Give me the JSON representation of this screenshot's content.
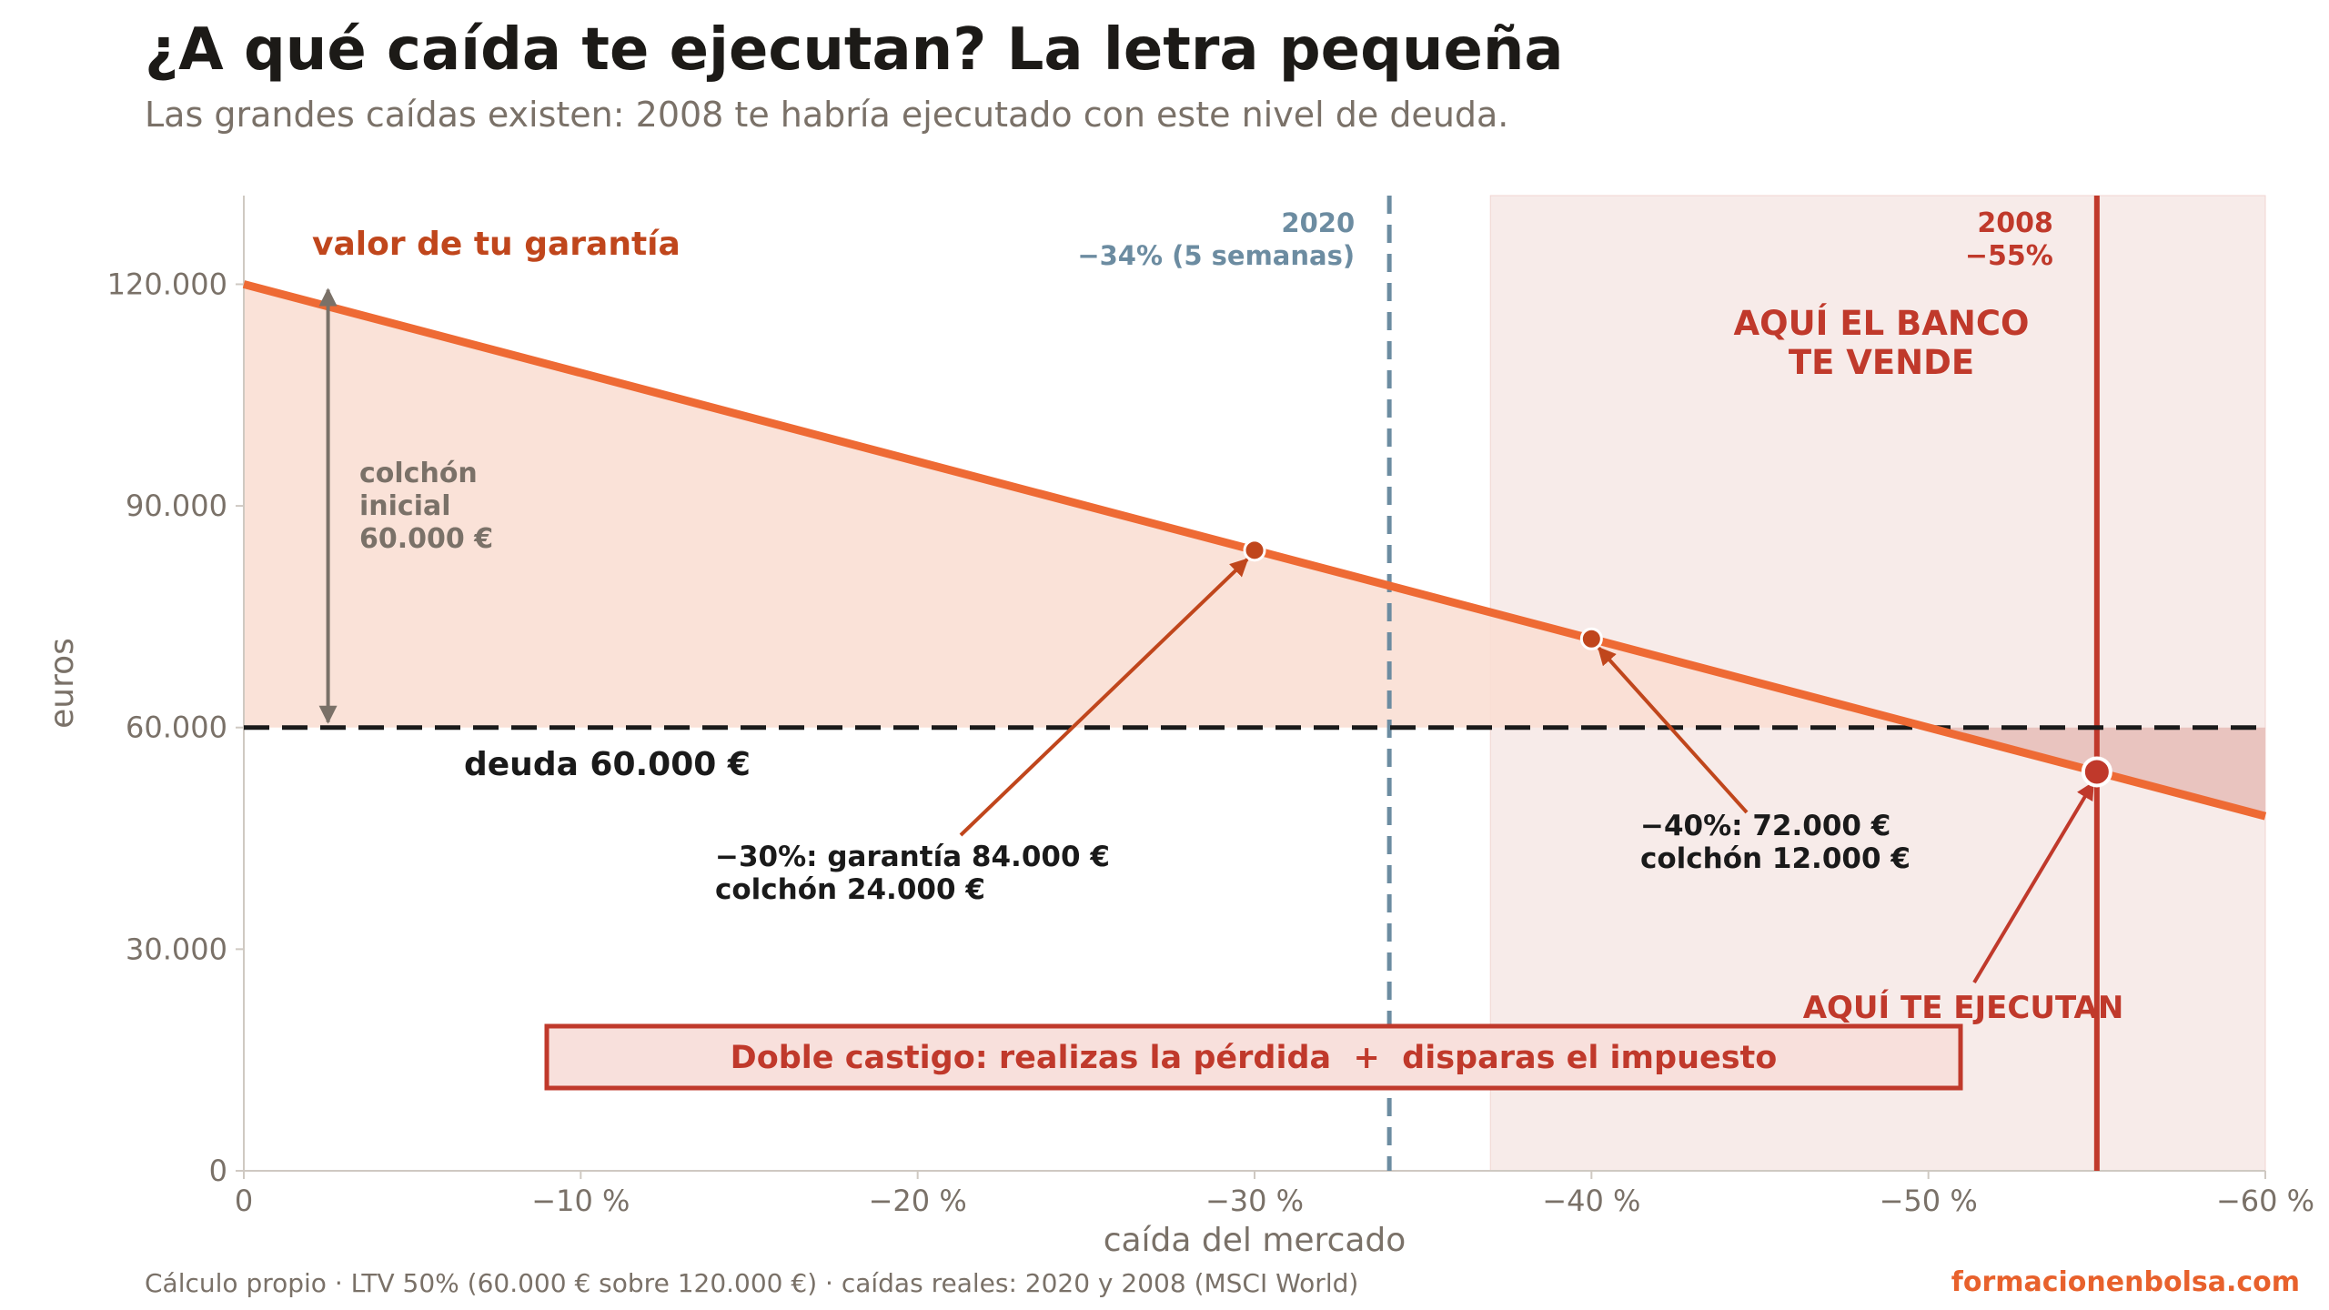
{
  "header": {
    "title": "¿A qué caída te ejecutan? La letra pequeña",
    "subtitle": "Las grandes caídas existen: 2008 te habría ejecutado con este nivel de deuda."
  },
  "footer": {
    "source": "Cálculo propio · LTV 50% (60.000 € sobre 120.000 €) · caídas reales: 2020 y 2008 (MSCI World)",
    "brand": "formacionenbolsa.com"
  },
  "colors": {
    "collateral_line": "#ee6a34",
    "collateral_fill": "#f9dfd4",
    "debt_line": "#1a1a1a",
    "danger": "#c0392b",
    "danger_zone": "#f7ebe9",
    "loss_fill": "#e9c4bf",
    "event_2020": "#6c8ca1",
    "muted": "#7a7168"
  },
  "chart_data": {
    "type": "line",
    "xlabel": "caída del mercado",
    "ylabel": "euros",
    "xlim": [
      0,
      -60
    ],
    "ylim": [
      0,
      132000
    ],
    "x_ticks": [
      0,
      -10,
      -20,
      -30,
      -40,
      -50,
      -60
    ],
    "x_tick_labels": [
      "0",
      "−10 %",
      "−20 %",
      "−30 %",
      "−40 %",
      "−50 %",
      "−60 %"
    ],
    "y_ticks": [
      0,
      30000,
      60000,
      90000,
      120000
    ],
    "y_tick_labels": [
      "0",
      "30.000",
      "60.000",
      "90.000",
      "120.000"
    ],
    "series": [
      {
        "name": "valor de tu garantía",
        "x": [
          0,
          -60
        ],
        "y": [
          120000,
          48000
        ]
      },
      {
        "name": "deuda 60.000 €",
        "x": [
          0,
          -60
        ],
        "y": [
          60000,
          60000
        ]
      }
    ],
    "points": [
      {
        "x": -30,
        "y": 84000,
        "label_lines": [
          "−30%: garantía 84.000 €",
          "colchón 24.000 €"
        ]
      },
      {
        "x": -40,
        "y": 72000,
        "label_lines": [
          "−40%: 72.000 €",
          "colchón 12.000 €"
        ]
      },
      {
        "x": -55,
        "y": 54000,
        "label_lines": [
          "AQUÍ TE EJECUTAN"
        ]
      }
    ],
    "events": [
      {
        "x": -34,
        "label_lines": [
          "2020",
          "−34% (5 semanas)"
        ]
      },
      {
        "x": -55,
        "label_lines": [
          "2008",
          "−55%"
        ]
      }
    ],
    "danger_zone": {
      "from": -37,
      "to": -60,
      "label_lines": [
        "AQUÍ EL BANCO",
        "TE VENDE"
      ]
    },
    "cushion": {
      "x": -2.5,
      "from": 60000,
      "to": 120000,
      "label_lines": [
        "colchón",
        "inicial",
        "60.000 €"
      ]
    },
    "callout": "Doble castigo: realizas la pérdida  +  disparas el impuesto",
    "grid": false
  }
}
